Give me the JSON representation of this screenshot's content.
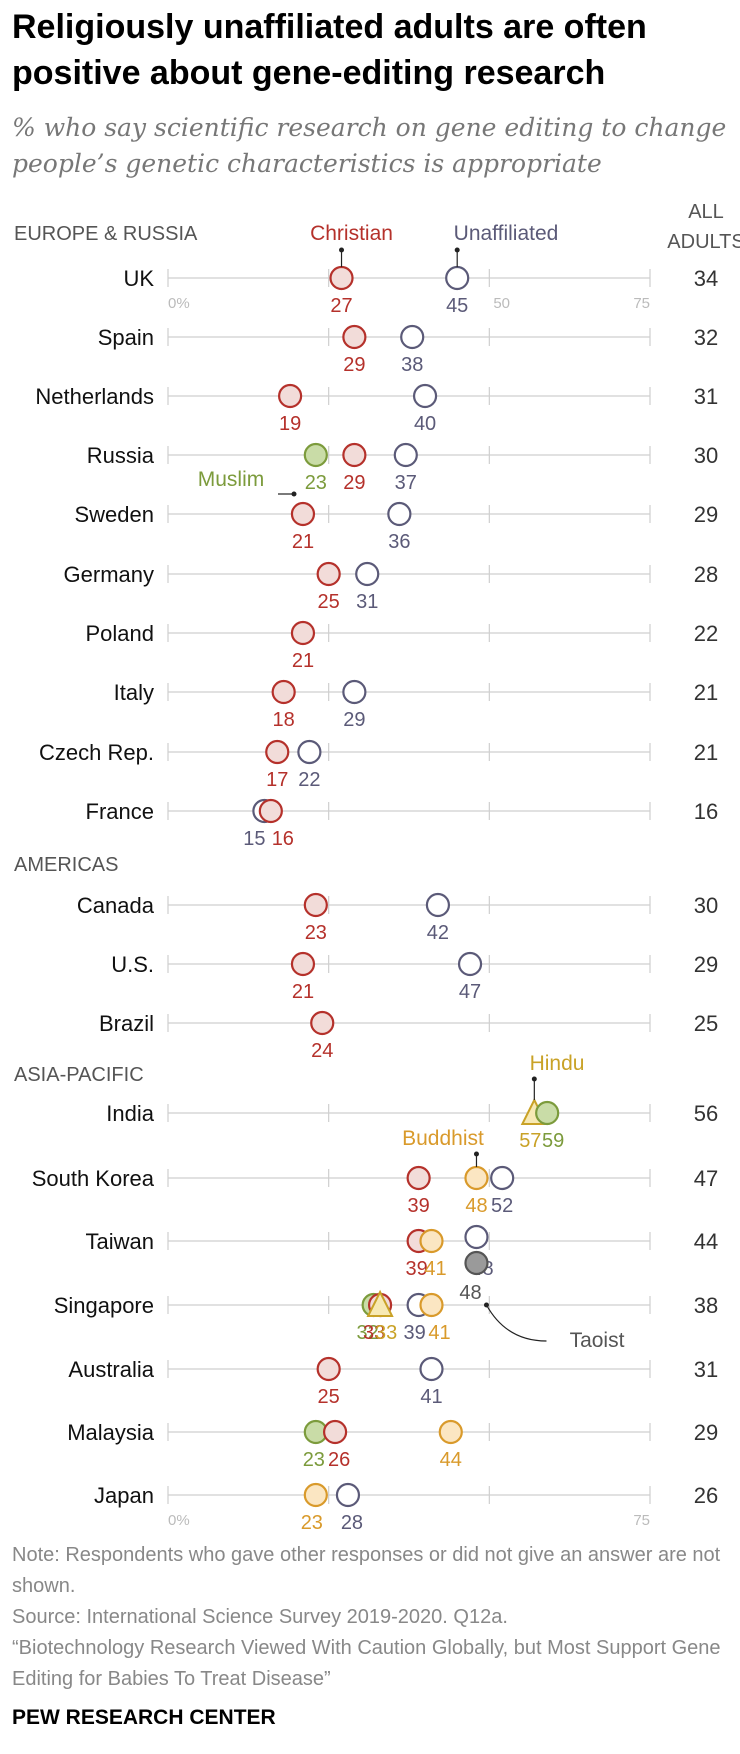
{
  "chart_data": {
    "type": "scatter",
    "title": "Religiously unaffiliated adults are often positive about gene-editing research",
    "subtitle": "% who say scientific research on gene editing to change people’s genetic characteristics is appropriate",
    "xlim": [
      0,
      75
    ],
    "tick_labels": [
      "0%",
      "50",
      "75"
    ],
    "all_adults_header": [
      "ALL",
      "ADULTS"
    ],
    "series": [
      {
        "key": "christian",
        "name": "Christian",
        "color": "#b5312b",
        "fill": "#f2dcd9",
        "shape": "circle"
      },
      {
        "key": "unaffiliated",
        "name": "Unaffiliated",
        "color": "#5b5a78",
        "fill": "#ffffff",
        "shape": "circle"
      },
      {
        "key": "muslim",
        "name": "Muslim",
        "color": "#7c9b3c",
        "fill": "#c9dca7",
        "shape": "circle"
      },
      {
        "key": "hindu",
        "name": "Hindu",
        "color": "#c9a227",
        "fill": "#f7e9b4",
        "shape": "triangle"
      },
      {
        "key": "buddhist",
        "name": "Buddhist",
        "color": "#d99a2b",
        "fill": "#fbe6c2",
        "shape": "circle"
      },
      {
        "key": "taoist",
        "name": "Taoist",
        "color": "#555555",
        "fill": "#9a9a9a",
        "shape": "circle"
      }
    ],
    "groups": [
      {
        "label": "EUROPE & RUSSIA",
        "rows": [
          {
            "country": "UK",
            "all_adults": 34,
            "values": {
              "christian": 27,
              "unaffiliated": 45
            }
          },
          {
            "country": "Spain",
            "all_adults": 32,
            "values": {
              "christian": 29,
              "unaffiliated": 38
            }
          },
          {
            "country": "Netherlands",
            "all_adults": 31,
            "values": {
              "christian": 19,
              "unaffiliated": 40
            }
          },
          {
            "country": "Russia",
            "all_adults": 30,
            "values": {
              "muslim": 23,
              "christian": 29,
              "unaffiliated": 37
            }
          },
          {
            "country": "Sweden",
            "all_adults": 29,
            "values": {
              "christian": 21,
              "unaffiliated": 36
            }
          },
          {
            "country": "Germany",
            "all_adults": 28,
            "values": {
              "christian": 25,
              "unaffiliated": 31
            }
          },
          {
            "country": "Poland",
            "all_adults": 22,
            "values": {
              "christian": 21
            }
          },
          {
            "country": "Italy",
            "all_adults": 21,
            "values": {
              "christian": 18,
              "unaffiliated": 29
            }
          },
          {
            "country": "Czech Rep.",
            "all_adults": 21,
            "values": {
              "christian": 17,
              "unaffiliated": 22
            }
          },
          {
            "country": "France",
            "all_adults": 16,
            "values": {
              "unaffiliated": 15,
              "christian": 16
            }
          }
        ]
      },
      {
        "label": "AMERICAS",
        "rows": [
          {
            "country": "Canada",
            "all_adults": 30,
            "values": {
              "christian": 23,
              "unaffiliated": 42
            }
          },
          {
            "country": "U.S.",
            "all_adults": 29,
            "values": {
              "christian": 21,
              "unaffiliated": 47
            }
          },
          {
            "country": "Brazil",
            "all_adults": 25,
            "values": {
              "christian": 24
            }
          }
        ]
      },
      {
        "label": "ASIA-PACIFIC",
        "rows": [
          {
            "country": "India",
            "all_adults": 56,
            "values": {
              "hindu": 57,
              "muslim": 59
            }
          },
          {
            "country": "South Korea",
            "all_adults": 47,
            "values": {
              "christian": 39,
              "buddhist": 48,
              "unaffiliated": 52
            }
          },
          {
            "country": "Taiwan",
            "all_adults": 44,
            "values": {
              "christian": 39,
              "buddhist": 41,
              "unaffiliated": 48,
              "taoist": 48
            }
          },
          {
            "country": "Singapore",
            "all_adults": 38,
            "values": {
              "muslim": 32,
              "christian": 33,
              "hindu": 33,
              "unaffiliated": 39,
              "buddhist": 41
            }
          },
          {
            "country": "Australia",
            "all_adults": 31,
            "values": {
              "christian": 25,
              "unaffiliated": 41
            }
          },
          {
            "country": "Malaysia",
            "all_adults": 29,
            "values": {
              "muslim": 23,
              "christian": 26,
              "buddhist": 44
            }
          },
          {
            "country": "Japan",
            "all_adults": 26,
            "values": {
              "buddhist": 23,
              "unaffiliated": 28
            }
          }
        ]
      }
    ]
  },
  "footer": {
    "note": "Note: Respondents who gave other responses or did not give an answer are not shown.",
    "source": "Source: International Science Survey 2019-2020. Q12a.",
    "report": "“Biotechnology Research Viewed With Caution Globally, but Most Support Gene Editing for Babies To Treat Disease”",
    "brand": "PEW RESEARCH CENTER"
  }
}
